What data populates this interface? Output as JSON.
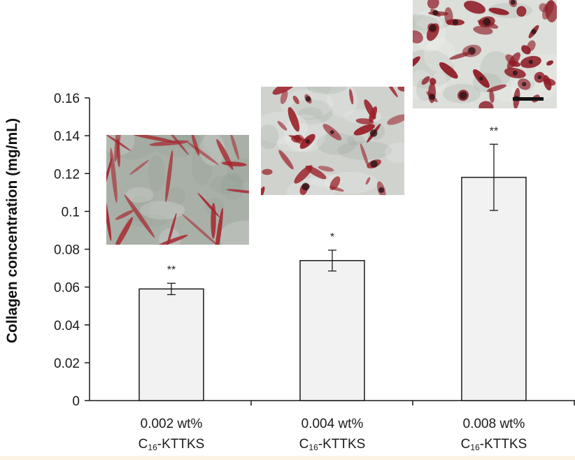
{
  "chart_data": {
    "type": "bar",
    "ylabel": "Collagen concentration (mg/mL)",
    "xlabel": "",
    "ylim": [
      0,
      0.16
    ],
    "yticks": [
      {
        "value": 0,
        "label": "0"
      },
      {
        "value": 0.02,
        "label": "0.02"
      },
      {
        "value": 0.04,
        "label": "0.04"
      },
      {
        "value": 0.06,
        "label": "0.06"
      },
      {
        "value": 0.08,
        "label": "0.08"
      },
      {
        "value": 0.1,
        "label": "0.1"
      },
      {
        "value": 0.12,
        "label": "0.12"
      },
      {
        "value": 0.14,
        "label": "0.14"
      },
      {
        "value": 0.16,
        "label": "0.16"
      }
    ],
    "categories": [
      {
        "line1": "0.002 wt%",
        "prefix": "C",
        "sub": "16",
        "suffix": "-KTTKS"
      },
      {
        "line1": "0.004 wt%",
        "prefix": "C",
        "sub": "16",
        "suffix": "-KTTKS"
      },
      {
        "line1": "0.008 wt%",
        "prefix": "C",
        "sub": "16",
        "suffix": "-KTTKS"
      }
    ],
    "values": [
      0.059,
      0.074,
      0.118
    ],
    "errors": [
      0.003,
      0.0055,
      0.0175
    ],
    "significance": [
      "**",
      "*",
      "**"
    ],
    "grid": false,
    "bar_color": "#f2f2f2",
    "bar_edge": "#1a1a1a"
  },
  "insets": [
    {
      "name": "micrograph-0-002",
      "tint": "#a9b0a8",
      "cell_color": "#a6242c",
      "shape": "elongated"
    },
    {
      "name": "micrograph-0-004",
      "tint": "#cfd2cd",
      "cell_color": "#9a1f28",
      "shape": "mixed"
    },
    {
      "name": "micrograph-0-008",
      "tint": "#dcdfda",
      "cell_color": "#8e1a24",
      "shape": "dense"
    }
  ]
}
